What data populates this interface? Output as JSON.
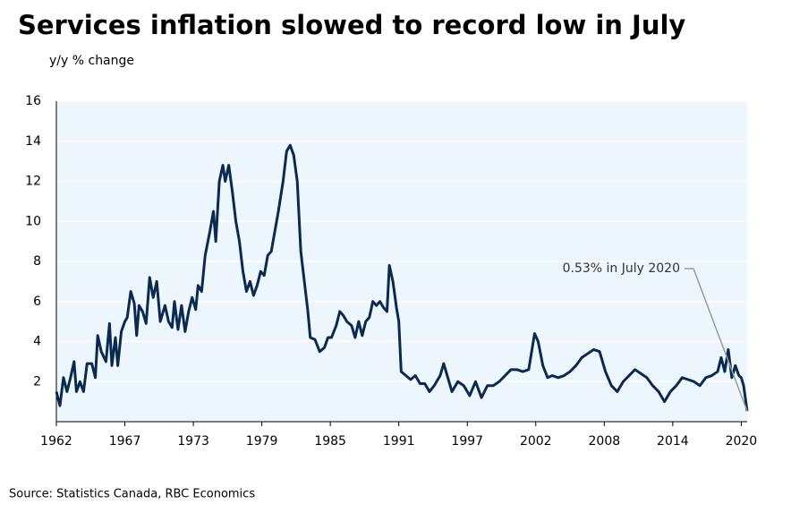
{
  "chart_data": {
    "type": "line",
    "title": "Services inflation slowed to record low in July",
    "y_label": "y/y % change",
    "source": "Source: Statistics Canada, RBC Economics",
    "annotation": "0.53% in July 2020",
    "color": "#0b2a50",
    "grid": true,
    "xlim": [
      1962,
      2020.5
    ],
    "ylim": [
      0,
      16
    ],
    "xticks": [
      1962,
      {
        "value": 1967.8,
        "label": "1967"
      },
      {
        "value": 1973.6,
        "label": "1973"
      },
      {
        "value": 1979.4,
        "label": "1979"
      },
      {
        "value": 1985.2,
        "label": "1985"
      },
      1991,
      {
        "value": 1996.8,
        "label": "1997"
      },
      {
        "value": 2002.6,
        "label": "2002"
      },
      {
        "value": 2008.4,
        "label": "2008"
      },
      {
        "value": 2014.2,
        "label": "2014"
      },
      2020
    ],
    "yticks": [
      2,
      4,
      6,
      8,
      10,
      12,
      14,
      16
    ],
    "x": [
      1962.0,
      1962.3,
      1962.6,
      1962.9,
      1963.2,
      1963.5,
      1963.7,
      1964.0,
      1964.3,
      1964.6,
      1965.0,
      1965.3,
      1965.5,
      1965.8,
      1966.2,
      1966.5,
      1966.7,
      1967.0,
      1967.2,
      1967.5,
      1967.8,
      1968.0,
      1968.3,
      1968.6,
      1968.8,
      1969.0,
      1969.3,
      1969.6,
      1969.9,
      1970.2,
      1970.5,
      1970.8,
      1971.2,
      1971.5,
      1971.8,
      1972.0,
      1972.3,
      1972.6,
      1972.9,
      1973.2,
      1973.5,
      1973.8,
      1974.0,
      1974.3,
      1974.6,
      1975.0,
      1975.3,
      1975.5,
      1975.8,
      1976.1,
      1976.3,
      1976.6,
      1976.9,
      1977.2,
      1977.5,
      1977.8,
      1978.1,
      1978.4,
      1978.7,
      1979.0,
      1979.3,
      1979.6,
      1979.9,
      1980.2,
      1980.5,
      1980.8,
      1981.2,
      1981.5,
      1981.8,
      1982.1,
      1982.4,
      1982.7,
      1983.0,
      1983.3,
      1983.5,
      1983.9,
      1984.3,
      1984.7,
      1985.0,
      1985.3,
      1985.7,
      1986.0,
      1986.3,
      1986.6,
      1987.0,
      1987.3,
      1987.6,
      1987.9,
      1988.2,
      1988.5,
      1988.8,
      1989.1,
      1989.4,
      1989.7,
      1990.0,
      1990.2,
      1990.5,
      1990.8,
      1991.0,
      1991.2,
      1991.6,
      1992.0,
      1992.4,
      1992.8,
      1993.2,
      1993.6,
      1994.0,
      1994.5,
      1994.8,
      1995.1,
      1995.5,
      1996.0,
      1996.5,
      1997.0,
      1997.5,
      1998.0,
      1998.5,
      1999.0,
      1999.5,
      2000.0,
      2000.5,
      2001.0,
      2001.5,
      2002.0,
      2002.5,
      2002.8,
      2003.2,
      2003.6,
      2004.0,
      2004.5,
      2005.0,
      2005.5,
      2006.0,
      2006.5,
      2007.0,
      2007.5,
      2008.0,
      2008.5,
      2009.0,
      2009.5,
      2010.0,
      2010.5,
      2011.0,
      2011.5,
      2012.0,
      2012.5,
      2013.0,
      2013.5,
      2014.0,
      2014.5,
      2015.0,
      2015.5,
      2016.0,
      2016.5,
      2017.0,
      2017.5,
      2018.0,
      2018.3,
      2018.6,
      2018.9,
      2019.2,
      2019.5,
      2019.8,
      2020.0,
      2020.2,
      2020.5
    ],
    "values": [
      1.5,
      0.8,
      2.2,
      1.5,
      2.2,
      3.0,
      1.5,
      2.0,
      1.5,
      2.9,
      2.9,
      2.2,
      4.3,
      3.5,
      3.0,
      4.9,
      2.8,
      4.2,
      2.8,
      4.5,
      5.0,
      5.2,
      6.5,
      5.9,
      4.3,
      5.8,
      5.5,
      4.9,
      7.2,
      6.2,
      7.0,
      5.0,
      5.8,
      5.0,
      4.7,
      6.0,
      4.6,
      5.8,
      4.5,
      5.5,
      6.2,
      5.6,
      6.8,
      6.5,
      8.3,
      9.5,
      10.5,
      9.0,
      12.0,
      12.8,
      12.0,
      12.8,
      11.5,
      10.0,
      9.0,
      7.5,
      6.5,
      7.0,
      6.3,
      6.8,
      7.5,
      7.3,
      8.3,
      8.5,
      9.5,
      10.5,
      12.0,
      13.5,
      13.8,
      13.3,
      12.0,
      8.5,
      7.0,
      5.5,
      4.2,
      4.1,
      3.5,
      3.7,
      4.2,
      4.2,
      4.8,
      5.5,
      5.3,
      5.0,
      4.8,
      4.2,
      5.0,
      4.3,
      5.0,
      5.2,
      6.0,
      5.8,
      6.0,
      5.7,
      5.5,
      7.8,
      7.0,
      5.7,
      5.0,
      2.5,
      2.3,
      2.1,
      2.3,
      1.9,
      1.9,
      1.5,
      1.8,
      2.3,
      2.9,
      2.3,
      1.5,
      2.0,
      1.8,
      1.3,
      2.0,
      1.2,
      1.8,
      1.8,
      2.0,
      2.3,
      2.6,
      2.6,
      2.5,
      2.6,
      4.4,
      4.0,
      2.8,
      2.2,
      2.3,
      2.2,
      2.3,
      2.5,
      2.8,
      3.2,
      3.4,
      3.6,
      3.5,
      2.5,
      1.8,
      1.5,
      2.0,
      2.3,
      2.6,
      2.4,
      2.2,
      1.8,
      1.5,
      1.0,
      1.5,
      1.8,
      2.2,
      2.1,
      2.0,
      1.8,
      2.2,
      2.3,
      2.5,
      3.2,
      2.5,
      3.6,
      2.2,
      2.8,
      2.3,
      2.2,
      1.8,
      0.53
    ]
  }
}
